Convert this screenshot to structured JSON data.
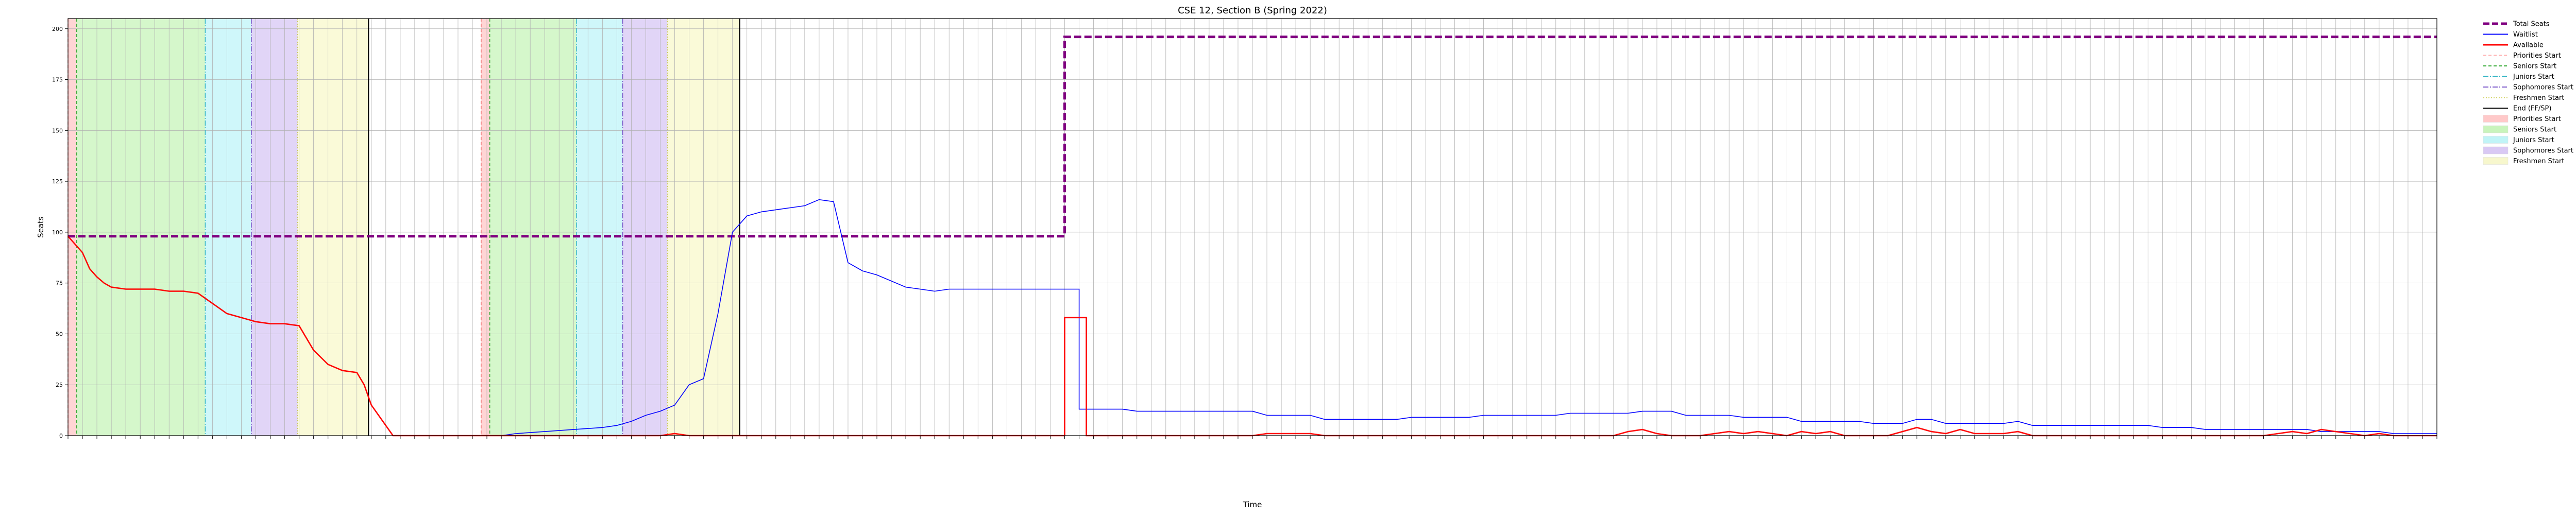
{
  "chart_data": {
    "type": "line",
    "title": "CSE 12, Section B (Spring 2022)",
    "xlabel": "Time",
    "ylabel": "Seats",
    "ylim": [
      0,
      205
    ],
    "yticks": [
      0,
      25,
      50,
      75,
      100,
      125,
      150,
      175,
      200
    ],
    "xlim": [
      0,
      164
    ],
    "grid": true,
    "legend_position": "outside-right",
    "x_tick_labels_note": "many dense rotated timestamp labels, not individually legible",
    "colors": {
      "total": "#800080",
      "waitlist": "#0000ff",
      "available": "#ff0000",
      "priorities": "#ffb3b3",
      "seniors": "#b3f0a1",
      "juniors": "#a8f0f5",
      "sophomores": "#c9b3f0",
      "freshmen": "#f5f5b8",
      "end": "#000000"
    },
    "series": [
      {
        "name": "Total Seats",
        "style": "dashed",
        "points": [
          [
            0,
            98
          ],
          [
            69,
            98
          ],
          [
            69,
            196
          ],
          [
            164,
            196
          ]
        ]
      },
      {
        "name": "Waitlist",
        "style": "solid",
        "points": [
          [
            30,
            0
          ],
          [
            31,
            1
          ],
          [
            33,
            2
          ],
          [
            35,
            3
          ],
          [
            37,
            4
          ],
          [
            38,
            5
          ],
          [
            39,
            7
          ],
          [
            40,
            10
          ],
          [
            41,
            12
          ],
          [
            42,
            15
          ],
          [
            43,
            25
          ],
          [
            44,
            28
          ],
          [
            45,
            60
          ],
          [
            46,
            100
          ],
          [
            47,
            108
          ],
          [
            48,
            110
          ],
          [
            49,
            111
          ],
          [
            50,
            112
          ],
          [
            51,
            113
          ],
          [
            52,
            116
          ],
          [
            53,
            115
          ],
          [
            54,
            85
          ],
          [
            55,
            81
          ],
          [
            56,
            79
          ],
          [
            57,
            76
          ],
          [
            58,
            73
          ],
          [
            59,
            72
          ],
          [
            60,
            71
          ],
          [
            61,
            72
          ],
          [
            70,
            72
          ],
          [
            70,
            13
          ],
          [
            73,
            13
          ],
          [
            74,
            12
          ],
          [
            82,
            12
          ],
          [
            83,
            10
          ],
          [
            86,
            10
          ],
          [
            87,
            8
          ],
          [
            92,
            8
          ],
          [
            93,
            9
          ],
          [
            97,
            9
          ],
          [
            98,
            10
          ],
          [
            103,
            10
          ],
          [
            104,
            11
          ],
          [
            108,
            11
          ],
          [
            109,
            12
          ],
          [
            111,
            12
          ],
          [
            112,
            10
          ],
          [
            115,
            10
          ],
          [
            116,
            9
          ],
          [
            119,
            9
          ],
          [
            120,
            7
          ],
          [
            124,
            7
          ],
          [
            125,
            6
          ],
          [
            127,
            6
          ],
          [
            128,
            8
          ],
          [
            129,
            8
          ],
          [
            130,
            6
          ],
          [
            134,
            6
          ],
          [
            135,
            7
          ],
          [
            136,
            5
          ],
          [
            144,
            5
          ],
          [
            145,
            4
          ],
          [
            147,
            4
          ],
          [
            148,
            3
          ],
          [
            155,
            3
          ],
          [
            156,
            2
          ],
          [
            160,
            2
          ],
          [
            161,
            1
          ],
          [
            164,
            1
          ]
        ]
      },
      {
        "name": "Available",
        "style": "solid",
        "points": [
          [
            0,
            98
          ],
          [
            0.5,
            94
          ],
          [
            1,
            90
          ],
          [
            1.5,
            82
          ],
          [
            2,
            78
          ],
          [
            2.5,
            75
          ],
          [
            3,
            73
          ],
          [
            4,
            72
          ],
          [
            6,
            72
          ],
          [
            7,
            71
          ],
          [
            8,
            71
          ],
          [
            9,
            70
          ],
          [
            10,
            65
          ],
          [
            11,
            60
          ],
          [
            12,
            58
          ],
          [
            13,
            56
          ],
          [
            14,
            55
          ],
          [
            15,
            55
          ],
          [
            16,
            54
          ],
          [
            16.5,
            48
          ],
          [
            17,
            42
          ],
          [
            18,
            35
          ],
          [
            19,
            32
          ],
          [
            20,
            31
          ],
          [
            20.5,
            25
          ],
          [
            21,
            15
          ],
          [
            22,
            5
          ],
          [
            22.5,
            0
          ],
          [
            41,
            0
          ],
          [
            42,
            1
          ],
          [
            43,
            0
          ],
          [
            69,
            0
          ],
          [
            69,
            58
          ],
          [
            70.5,
            58
          ],
          [
            70.5,
            0
          ],
          [
            82,
            0
          ],
          [
            83,
            1
          ],
          [
            86,
            1
          ],
          [
            87,
            0
          ],
          [
            107,
            0
          ],
          [
            108,
            2
          ],
          [
            109,
            3
          ],
          [
            110,
            1
          ],
          [
            111,
            0
          ],
          [
            113,
            0
          ],
          [
            114,
            1
          ],
          [
            115,
            2
          ],
          [
            116,
            1
          ],
          [
            117,
            2
          ],
          [
            118,
            1
          ],
          [
            119,
            0
          ],
          [
            120,
            2
          ],
          [
            121,
            1
          ],
          [
            122,
            2
          ],
          [
            123,
            0
          ],
          [
            126,
            0
          ],
          [
            127,
            2
          ],
          [
            128,
            4
          ],
          [
            129,
            2
          ],
          [
            130,
            1
          ],
          [
            131,
            3
          ],
          [
            132,
            1
          ],
          [
            134,
            1
          ],
          [
            135,
            2
          ],
          [
            136,
            0
          ],
          [
            152,
            0
          ],
          [
            153,
            1
          ],
          [
            154,
            2
          ],
          [
            155,
            1
          ],
          [
            156,
            3
          ],
          [
            157,
            2
          ],
          [
            158,
            1
          ],
          [
            159,
            0
          ],
          [
            160,
            1
          ],
          [
            161,
            0
          ],
          [
            164,
            0
          ]
        ]
      }
    ],
    "bands": [
      {
        "name": "Priorities Start",
        "from": 0,
        "to": 0.6,
        "color": "#ffb3b3"
      },
      {
        "name": "Seniors Start",
        "from": 0.6,
        "to": 9.5,
        "color": "#b3f0a1"
      },
      {
        "name": "Juniors Start",
        "from": 9.5,
        "to": 12.7,
        "color": "#a8f0f5"
      },
      {
        "name": "Sophomores Start",
        "from": 12.7,
        "to": 15.9,
        "color": "#c9b3f0"
      },
      {
        "name": "Freshmen Start",
        "from": 15.9,
        "to": 20.8,
        "color": "#f5f5b8"
      },
      {
        "name": "Priorities Start",
        "from": 28.6,
        "to": 29.2,
        "color": "#ffb3b3"
      },
      {
        "name": "Seniors Start",
        "from": 29.2,
        "to": 35.2,
        "color": "#b3f0a1"
      },
      {
        "name": "Juniors Start",
        "from": 35.2,
        "to": 38.4,
        "color": "#a8f0f5"
      },
      {
        "name": "Sophomores Start",
        "from": 38.4,
        "to": 41.5,
        "color": "#c9b3f0"
      },
      {
        "name": "Freshmen Start",
        "from": 41.5,
        "to": 46.5,
        "color": "#f5f5b8"
      }
    ],
    "end_lines": [
      20.8,
      46.5
    ],
    "legend": [
      {
        "label": "Total Seats",
        "kind": "line",
        "color": "#800080",
        "dash": "12,5",
        "width": 5
      },
      {
        "label": "Waitlist",
        "kind": "line",
        "color": "#0000ff",
        "width": 2
      },
      {
        "label": "Available",
        "kind": "line",
        "color": "#ff0000",
        "width": 3
      },
      {
        "label": "Priorities Start",
        "kind": "line",
        "color": "#ffb3b3",
        "dash": "6,4",
        "width": 2
      },
      {
        "label": "Seniors Start",
        "kind": "line",
        "color": "#33aa33",
        "dash": "6,4",
        "width": 2
      },
      {
        "label": "Juniors Start",
        "kind": "line",
        "color": "#33b5c4",
        "dash": "10,3,2,3",
        "width": 2
      },
      {
        "label": "Sophomores Start",
        "kind": "line",
        "color": "#7b57c9",
        "dash": "10,3,2,3",
        "width": 2
      },
      {
        "label": "Freshmen Start",
        "kind": "line",
        "color": "#d4d46a",
        "dash": "2,3",
        "width": 2
      },
      {
        "label": "End (FF/SP)",
        "kind": "line",
        "color": "#000000",
        "width": 2
      },
      {
        "label": "Priorities Start",
        "kind": "patch",
        "color": "#ffb3b3"
      },
      {
        "label": "Seniors Start",
        "kind": "patch",
        "color": "#b3f0a1"
      },
      {
        "label": "Juniors Start",
        "kind": "patch",
        "color": "#a8f0f5"
      },
      {
        "label": "Sophomores Start",
        "kind": "patch",
        "color": "#c9b3f0"
      },
      {
        "label": "Freshmen Start",
        "kind": "patch",
        "color": "#f5f5b8"
      }
    ]
  }
}
